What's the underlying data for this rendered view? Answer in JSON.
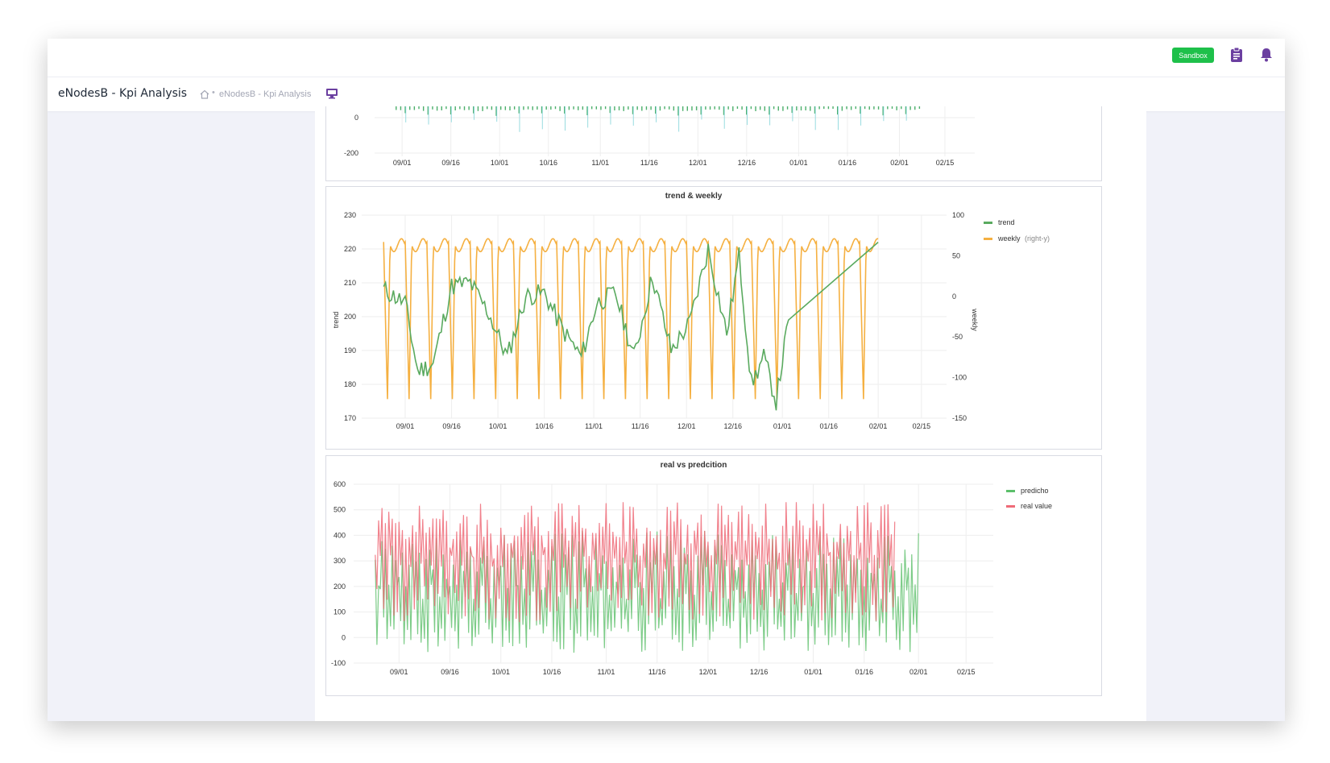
{
  "header": {
    "badge": "Sandbox",
    "icons": {
      "clipboard": "clipboard-icon",
      "bell": "bell-icon"
    },
    "accent_color": "#6b3fa0"
  },
  "subheader": {
    "title": "eNodesB - Kpi Analysis",
    "breadcrumb_separator": "•",
    "breadcrumb": "eNodesB - Kpi Analysis",
    "icons": {
      "home": "home-icon",
      "monitor": "monitor-icon"
    }
  },
  "chart_data": [
    {
      "type": "bar",
      "title": "",
      "y_ticks": [
        "0",
        "-200"
      ],
      "x_ticks": [
        "09/01",
        "09/16",
        "10/01",
        "10/16",
        "11/01",
        "11/16",
        "12/01",
        "12/16",
        "01/01",
        "01/16",
        "02/01",
        "02/15"
      ],
      "colors": [
        "#4caf6b",
        "#7fd3d8"
      ],
      "note_partial": true
    },
    {
      "type": "line",
      "title": "trend & weekly",
      "ylabel": "trend",
      "y2label": "weekly",
      "ylim": [
        170,
        230
      ],
      "y2lim": [
        -150,
        100
      ],
      "y_ticks": [
        "230",
        "220",
        "210",
        "200",
        "190",
        "180",
        "170"
      ],
      "y2_ticks": [
        "100",
        "50",
        "0",
        "-50",
        "-100",
        "-150"
      ],
      "x_ticks": [
        "09/01",
        "09/16",
        "10/01",
        "10/16",
        "11/01",
        "11/16",
        "12/01",
        "12/16",
        "01/01",
        "01/16",
        "02/01",
        "02/15"
      ],
      "legend_position": "right",
      "series": [
        {
          "name": "trend",
          "axis": "left",
          "color": "#5aaa5f",
          "x": [
            "08/25",
            "09/01",
            "09/05",
            "09/10",
            "09/16",
            "09/22",
            "09/28",
            "10/04",
            "10/10",
            "10/16",
            "10/22",
            "10/28",
            "11/02",
            "11/08",
            "11/14",
            "11/20",
            "11/26",
            "12/02",
            "12/08",
            "12/14",
            "12/18",
            "12/22",
            "12/26",
            "12/30",
            "01/03",
            "02/01"
          ],
          "values": [
            208,
            204,
            184,
            186,
            209,
            210,
            201,
            188,
            206,
            207,
            196,
            188,
            204,
            207,
            188,
            212,
            190,
            198,
            220,
            195,
            218,
            180,
            188,
            175,
            199,
            222
          ]
        },
        {
          "name": "weekly",
          "suffix": "(right-y)",
          "axis": "right",
          "color": "#f5b041",
          "period_days": 7,
          "min": -128,
          "max": 67,
          "start": "08/25",
          "end": "02/01"
        }
      ]
    },
    {
      "type": "line",
      "title": "real vs predcition",
      "ylim": [
        -100,
        600
      ],
      "y_ticks": [
        "600",
        "500",
        "400",
        "300",
        "200",
        "100",
        "0",
        "-100"
      ],
      "x_ticks": [
        "09/01",
        "09/16",
        "10/01",
        "10/16",
        "11/01",
        "11/16",
        "12/01",
        "12/16",
        "01/01",
        "01/16",
        "02/01",
        "02/15"
      ],
      "legend_position": "right",
      "series": [
        {
          "name": "predicho",
          "color": "#5cbf6a",
          "start": "08/25",
          "end": "02/01",
          "min": -60,
          "max": 420
        },
        {
          "name": "real value",
          "color": "#ef6b78",
          "start": "08/25",
          "end": "01/25",
          "min": 60,
          "max": 530
        }
      ]
    }
  ]
}
